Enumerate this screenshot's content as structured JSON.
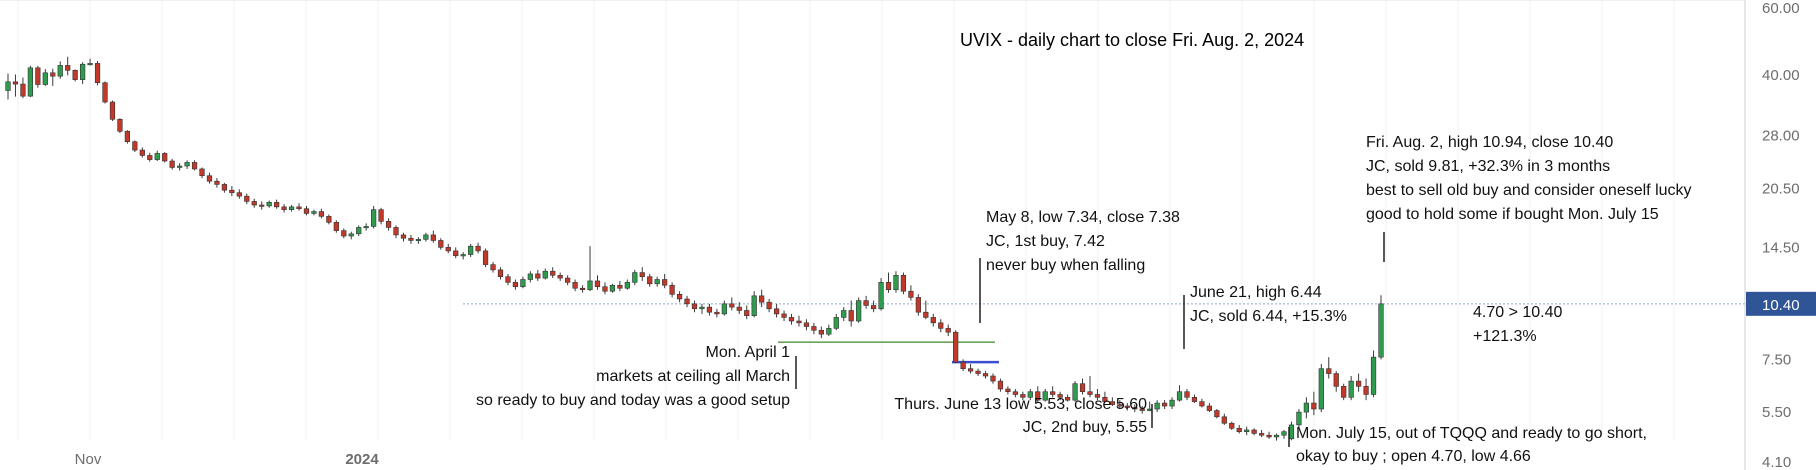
{
  "chart_data": {
    "type": "candlestick",
    "title": "UVIX - daily chart to close Fri. Aug. 2, 2024",
    "y_axis": {
      "scale": "log",
      "ticks": [
        "60.00",
        "40.00",
        "28.00",
        "20.50",
        "14.50",
        "10.40",
        "7.50",
        "5.50",
        "4.10"
      ],
      "range": [
        4.0,
        60.0
      ],
      "position": "right"
    },
    "x_axis": {
      "ticks": [
        "Nov",
        "2024"
      ]
    },
    "last_price": {
      "value": 10.4,
      "label": "10.40"
    },
    "colors": {
      "up": "#2e9b4e",
      "down": "#c0392b",
      "last_price_line": "#8fa6cf",
      "support_line": "#6da35a",
      "marker": "#3a4ecf"
    },
    "candles": [
      [
        36.5,
        40.3,
        34.6,
        38.4
      ],
      [
        38.4,
        40.1,
        35.2,
        37.9
      ],
      [
        37.9,
        39.4,
        34.9,
        35.3
      ],
      [
        35.3,
        42.2,
        35.1,
        41.7
      ],
      [
        41.7,
        42.2,
        37.1,
        37.8
      ],
      [
        37.8,
        41.4,
        37.5,
        40.5
      ],
      [
        40.5,
        41.5,
        37.5,
        39.7
      ],
      [
        39.7,
        43.3,
        39.1,
        42.3
      ],
      [
        42.3,
        44.5,
        39.9,
        41.1
      ],
      [
        41.1,
        41.3,
        38.5,
        38.9
      ],
      [
        38.9,
        43.1,
        37.9,
        42.6
      ],
      [
        42.6,
        44.0,
        42.3,
        42.8
      ],
      [
        42.8,
        43.4,
        37.6,
        38.2
      ],
      [
        38.2,
        38.5,
        33.8,
        34.1
      ],
      [
        34.1,
        34.4,
        30.5,
        30.8
      ],
      [
        30.8,
        31.0,
        28.4,
        28.7
      ],
      [
        28.7,
        28.9,
        26.7,
        27.0
      ],
      [
        27.0,
        27.2,
        25.4,
        25.7
      ],
      [
        25.7,
        26.1,
        24.6,
        24.9
      ],
      [
        24.9,
        25.3,
        24.0,
        24.3
      ],
      [
        24.3,
        25.6,
        24.1,
        25.2
      ],
      [
        25.2,
        25.4,
        23.9,
        24.1
      ],
      [
        24.1,
        24.4,
        22.9,
        23.2
      ],
      [
        23.2,
        23.8,
        22.8,
        23.4
      ],
      [
        23.4,
        24.2,
        23.0,
        23.9
      ],
      [
        23.9,
        24.2,
        22.8,
        23.0
      ],
      [
        23.0,
        23.2,
        21.8,
        22.1
      ],
      [
        22.1,
        22.5,
        21.1,
        21.4
      ],
      [
        21.4,
        21.8,
        20.6,
        21.0
      ],
      [
        21.0,
        21.2,
        20.0,
        20.3
      ],
      [
        20.3,
        20.8,
        19.6,
        20.0
      ],
      [
        20.0,
        20.4,
        19.3,
        19.6
      ],
      [
        19.6,
        19.9,
        18.7,
        19.0
      ],
      [
        19.0,
        19.3,
        18.3,
        18.6
      ],
      [
        18.6,
        19.0,
        18.1,
        18.5
      ],
      [
        18.5,
        19.1,
        18.3,
        18.9
      ],
      [
        18.9,
        19.2,
        18.2,
        18.4
      ],
      [
        18.4,
        18.7,
        17.8,
        18.1
      ],
      [
        18.1,
        18.6,
        17.9,
        18.4
      ],
      [
        18.4,
        18.8,
        18.0,
        18.2
      ],
      [
        18.2,
        18.5,
        17.5,
        17.7
      ],
      [
        17.7,
        18.1,
        17.5,
        17.9
      ],
      [
        17.9,
        18.2,
        17.2,
        17.4
      ],
      [
        17.4,
        17.6,
        16.6,
        16.8
      ],
      [
        16.8,
        17.0,
        15.8,
        16.0
      ],
      [
        16.0,
        16.2,
        15.3,
        15.5
      ],
      [
        15.5,
        15.9,
        15.2,
        15.7
      ],
      [
        15.7,
        16.5,
        15.5,
        16.3
      ],
      [
        16.3,
        16.7,
        16.0,
        16.4
      ],
      [
        16.4,
        18.5,
        16.2,
        18.1
      ],
      [
        18.1,
        18.3,
        16.6,
        16.9
      ],
      [
        16.9,
        17.2,
        16.0,
        16.3
      ],
      [
        16.3,
        16.5,
        15.3,
        15.6
      ],
      [
        15.6,
        15.8,
        15.0,
        15.3
      ],
      [
        15.3,
        15.6,
        14.8,
        15.1
      ],
      [
        15.1,
        15.4,
        14.8,
        15.2
      ],
      [
        15.2,
        15.8,
        15.0,
        15.6
      ],
      [
        15.6,
        16.0,
        14.9,
        15.1
      ],
      [
        15.1,
        15.3,
        14.3,
        14.5
      ],
      [
        14.5,
        14.8,
        14.0,
        14.2
      ],
      [
        14.2,
        14.5,
        13.6,
        13.8
      ],
      [
        13.8,
        14.1,
        13.5,
        13.9
      ],
      [
        13.9,
        14.8,
        13.7,
        14.6
      ],
      [
        14.6,
        14.9,
        14.0,
        14.2
      ],
      [
        14.2,
        14.4,
        12.9,
        13.1
      ],
      [
        13.1,
        13.3,
        12.5,
        12.7
      ],
      [
        12.7,
        12.9,
        12.0,
        12.2
      ],
      [
        12.2,
        12.4,
        11.6,
        11.8
      ],
      [
        11.8,
        12.0,
        11.3,
        11.5
      ],
      [
        11.5,
        12.2,
        11.4,
        12.0
      ],
      [
        12.0,
        12.6,
        11.8,
        12.4
      ],
      [
        12.4,
        12.7,
        11.9,
        12.1
      ],
      [
        12.1,
        12.8,
        12.0,
        12.6
      ],
      [
        12.6,
        12.9,
        12.1,
        12.3
      ],
      [
        12.3,
        12.5,
        11.9,
        12.1
      ],
      [
        12.1,
        12.3,
        11.6,
        11.8
      ],
      [
        11.8,
        12.0,
        11.2,
        11.4
      ],
      [
        11.4,
        11.6,
        11.1,
        11.3
      ],
      [
        11.3,
        14.6,
        11.2,
        11.9
      ],
      [
        11.9,
        12.3,
        11.3,
        11.5
      ],
      [
        11.5,
        11.8,
        11.0,
        11.2
      ],
      [
        11.2,
        11.7,
        11.1,
        11.6
      ],
      [
        11.6,
        11.9,
        11.2,
        11.4
      ],
      [
        11.4,
        12.0,
        11.3,
        11.8
      ],
      [
        11.8,
        12.7,
        11.6,
        12.5
      ],
      [
        12.5,
        12.9,
        11.9,
        12.2
      ],
      [
        12.2,
        12.4,
        11.5,
        11.7
      ],
      [
        11.7,
        12.2,
        11.5,
        12.0
      ],
      [
        12.0,
        12.4,
        11.4,
        11.6
      ],
      [
        11.6,
        11.8,
        10.8,
        11.0
      ],
      [
        11.0,
        11.2,
        10.5,
        10.7
      ],
      [
        10.7,
        10.9,
        10.2,
        10.4
      ],
      [
        10.4,
        10.6,
        9.9,
        10.1
      ],
      [
        10.1,
        10.4,
        9.8,
        10.2
      ],
      [
        10.2,
        10.4,
        9.7,
        9.9
      ],
      [
        9.9,
        10.1,
        9.6,
        9.8
      ],
      [
        9.8,
        10.6,
        9.7,
        10.4
      ],
      [
        10.4,
        10.8,
        10.0,
        10.2
      ],
      [
        10.2,
        10.5,
        9.8,
        10.0
      ],
      [
        10.0,
        10.3,
        9.5,
        9.7
      ],
      [
        9.7,
        11.2,
        9.6,
        10.9
      ],
      [
        10.9,
        11.3,
        10.2,
        10.5
      ],
      [
        10.5,
        10.7,
        9.9,
        10.1
      ],
      [
        10.1,
        10.4,
        9.6,
        9.8
      ],
      [
        9.8,
        10.0,
        9.4,
        9.6
      ],
      [
        9.6,
        9.8,
        9.2,
        9.4
      ],
      [
        9.4,
        9.7,
        9.1,
        9.3
      ],
      [
        9.3,
        9.5,
        8.9,
        9.1
      ],
      [
        9.1,
        9.3,
        8.7,
        8.9
      ],
      [
        8.9,
        9.1,
        8.5,
        8.7
      ],
      [
        8.7,
        9.2,
        8.6,
        9.0
      ],
      [
        9.0,
        9.8,
        8.9,
        9.6
      ],
      [
        9.6,
        10.2,
        9.4,
        10.0
      ],
      [
        10.0,
        10.6,
        9.1,
        9.4
      ],
      [
        9.4,
        10.8,
        9.3,
        10.6
      ],
      [
        10.6,
        10.9,
        10.1,
        10.3
      ],
      [
        10.3,
        10.6,
        9.9,
        10.1
      ],
      [
        10.1,
        12.1,
        10.0,
        11.8
      ],
      [
        11.8,
        12.5,
        11.1,
        11.3
      ],
      [
        11.3,
        12.6,
        11.1,
        12.3
      ],
      [
        12.3,
        12.5,
        11.0,
        11.2
      ],
      [
        11.2,
        11.6,
        10.6,
        10.8
      ],
      [
        10.8,
        11.0,
        9.7,
        9.9
      ],
      [
        9.9,
        10.6,
        9.5,
        9.6
      ],
      [
        9.6,
        9.8,
        9.1,
        9.3
      ],
      [
        9.3,
        9.5,
        8.8,
        9.0
      ],
      [
        9.0,
        9.2,
        8.6,
        8.8
      ],
      [
        8.8,
        8.9,
        7.34,
        7.38
      ],
      [
        7.38,
        7.5,
        7.0,
        7.1
      ],
      [
        7.1,
        7.3,
        6.9,
        7.0
      ],
      [
        7.0,
        7.1,
        6.8,
        6.9
      ],
      [
        6.9,
        7.0,
        6.7,
        6.8
      ],
      [
        6.8,
        6.9,
        6.5,
        6.6
      ],
      [
        6.6,
        6.7,
        6.2,
        6.3
      ],
      [
        6.3,
        6.4,
        6.1,
        6.2
      ],
      [
        6.2,
        6.3,
        6.0,
        6.1
      ],
      [
        6.1,
        6.2,
        5.9,
        6.0
      ],
      [
        6.0,
        6.3,
        5.9,
        6.2
      ],
      [
        6.2,
        6.4,
        5.8,
        5.9
      ],
      [
        5.9,
        6.3,
        5.85,
        6.2
      ],
      [
        6.2,
        6.4,
        6.0,
        6.1
      ],
      [
        6.1,
        6.2,
        5.9,
        6.0
      ],
      [
        6.0,
        6.1,
        5.85,
        5.9
      ],
      [
        5.9,
        6.6,
        5.85,
        6.5
      ],
      [
        6.5,
        6.7,
        6.1,
        6.2
      ],
      [
        6.2,
        6.8,
        6.0,
        6.1
      ],
      [
        6.1,
        6.3,
        5.9,
        6.0
      ],
      [
        6.0,
        6.2,
        5.8,
        5.85
      ],
      [
        5.85,
        6.0,
        5.7,
        5.75
      ],
      [
        5.75,
        5.9,
        5.6,
        5.7
      ],
      [
        5.7,
        5.8,
        5.55,
        5.65
      ],
      [
        5.65,
        5.75,
        5.5,
        5.6
      ],
      [
        5.6,
        5.7,
        5.45,
        5.55
      ],
      [
        5.55,
        5.85,
        5.53,
        5.6
      ],
      [
        5.6,
        5.9,
        5.5,
        5.8
      ],
      [
        5.8,
        5.9,
        5.6,
        5.7
      ],
      [
        5.7,
        6.0,
        5.6,
        5.9
      ],
      [
        5.9,
        6.44,
        5.85,
        6.2
      ],
      [
        6.2,
        6.3,
        5.9,
        6.0
      ],
      [
        6.0,
        6.1,
        5.8,
        5.85
      ],
      [
        5.85,
        5.95,
        5.65,
        5.7
      ],
      [
        5.7,
        5.8,
        5.5,
        5.55
      ],
      [
        5.55,
        5.6,
        5.3,
        5.35
      ],
      [
        5.35,
        5.45,
        5.1,
        5.15
      ],
      [
        5.15,
        5.2,
        4.95,
        5.0
      ],
      [
        5.0,
        5.1,
        4.85,
        4.9
      ],
      [
        4.9,
        5.05,
        4.8,
        4.95
      ],
      [
        4.95,
        5.0,
        4.8,
        4.85
      ],
      [
        4.85,
        4.95,
        4.75,
        4.8
      ],
      [
        4.8,
        4.9,
        4.7,
        4.75
      ],
      [
        4.75,
        4.85,
        4.65,
        4.8
      ],
      [
        4.8,
        4.95,
        4.7,
        4.9
      ],
      [
        4.7,
        5.2,
        4.66,
        5.1
      ],
      [
        5.1,
        5.6,
        5.0,
        5.5
      ],
      [
        5.5,
        6.0,
        5.3,
        5.8
      ],
      [
        5.8,
        6.2,
        5.4,
        5.6
      ],
      [
        5.6,
        7.3,
        5.5,
        7.1
      ],
      [
        7.1,
        7.6,
        6.7,
        6.9
      ],
      [
        6.9,
        7.0,
        6.2,
        6.4
      ],
      [
        6.4,
        6.5,
        5.9,
        6.0
      ],
      [
        6.0,
        6.8,
        5.9,
        6.6
      ],
      [
        6.6,
        6.9,
        6.2,
        6.4
      ],
      [
        6.4,
        6.7,
        5.9,
        6.1
      ],
      [
        6.1,
        7.9,
        6.0,
        7.6
      ],
      [
        7.6,
        10.94,
        7.5,
        10.4
      ]
    ],
    "support_line": {
      "value": 8.3
    },
    "annotations": [
      {
        "id": "april1",
        "lines": [
          "Mon. April 1",
          "markets at ceiling all March",
          "so ready to buy and today was a good setup"
        ]
      },
      {
        "id": "may8",
        "lines": [
          "May 8, low 7.34, close 7.38",
          "JC, 1st buy, 7.42",
          "never buy when falling"
        ]
      },
      {
        "id": "june13",
        "lines": [
          "Thurs. June 13 low 5.53, close 5.60",
          "JC, 2nd buy, 5.55"
        ]
      },
      {
        "id": "june21",
        "lines": [
          "June 21, high 6.44",
          "JC, sold 6.44, +15.3%"
        ]
      },
      {
        "id": "july15",
        "lines": [
          "Mon. July 15, out of TQQQ and ready to go short,",
          "okay to buy ; open 4.70, low 4.66"
        ]
      },
      {
        "id": "aug2",
        "lines": [
          "Fri. Aug. 2, high 10.94, close 10.40",
          "JC, sold 9.81, +32.3% in 3 months",
          "best to sell old buy and consider oneself lucky",
          "good to hold some if bought Mon. July 15"
        ]
      },
      {
        "id": "gain",
        "lines": [
          "4.70 > 10.40",
          "+121.3%"
        ]
      }
    ]
  }
}
